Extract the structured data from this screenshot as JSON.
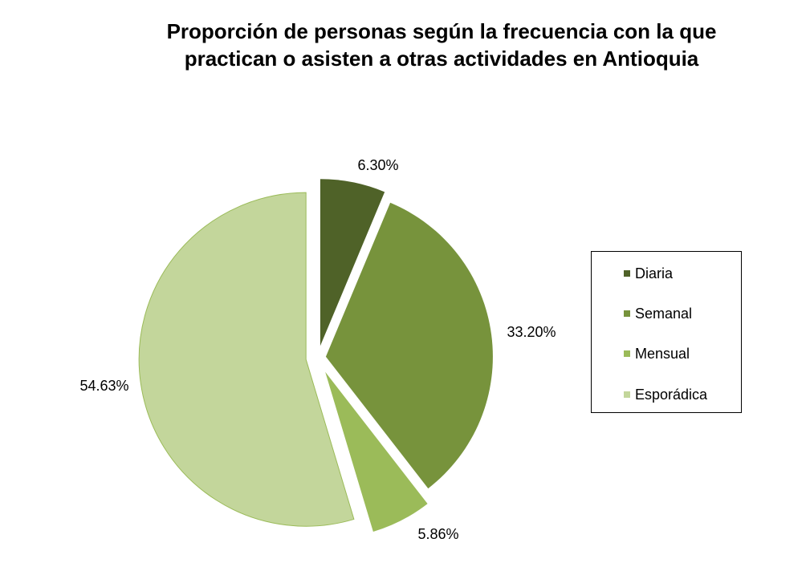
{
  "chart_data": {
    "type": "pie",
    "title_line1": "Proporción de personas según la frecuencia con la que",
    "title_line2": "practican o asisten a otras actividades en Antioquia",
    "slices": [
      {
        "label": "Diaria",
        "value": 6.3,
        "display": "6.30%",
        "color": "#4F6228",
        "exploded": true
      },
      {
        "label": "Semanal",
        "value": 33.2,
        "display": "33.20%",
        "color": "#77933C",
        "exploded": true
      },
      {
        "label": "Mensual",
        "value": 5.86,
        "display": "5.86%",
        "color": "#9BBB59",
        "exploded": true
      },
      {
        "label": "Esporádica",
        "value": 54.63,
        "display": "54.63%",
        "color": "#C3D69B",
        "exploded": true
      }
    ],
    "legend_position": "right"
  }
}
